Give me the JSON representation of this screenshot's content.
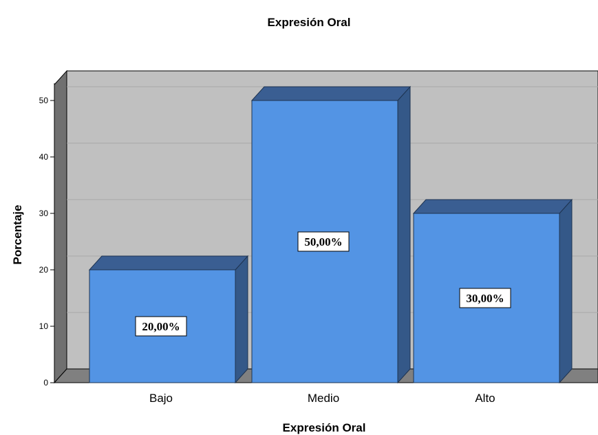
{
  "chart_data": {
    "type": "bar",
    "title": "Expresión Oral",
    "xlabel": "Expresión Oral",
    "ylabel": "Porcentaje",
    "categories": [
      "Bajo",
      "Medio",
      "Alto"
    ],
    "values": [
      20,
      50,
      30
    ],
    "data_labels": [
      "20,00%",
      "50,00%",
      "30,00%"
    ],
    "ylim": [
      0,
      50
    ],
    "yticks": [
      0,
      10,
      20,
      30,
      40,
      50
    ],
    "grid": true,
    "style": "3d",
    "colors": {
      "bar_front": "#5394E4",
      "bar_top": "#3A5E92",
      "bar_side": "#345888",
      "plot_background": "#C0C0C0",
      "floor": "#808080",
      "side_wall": "#707070"
    }
  }
}
